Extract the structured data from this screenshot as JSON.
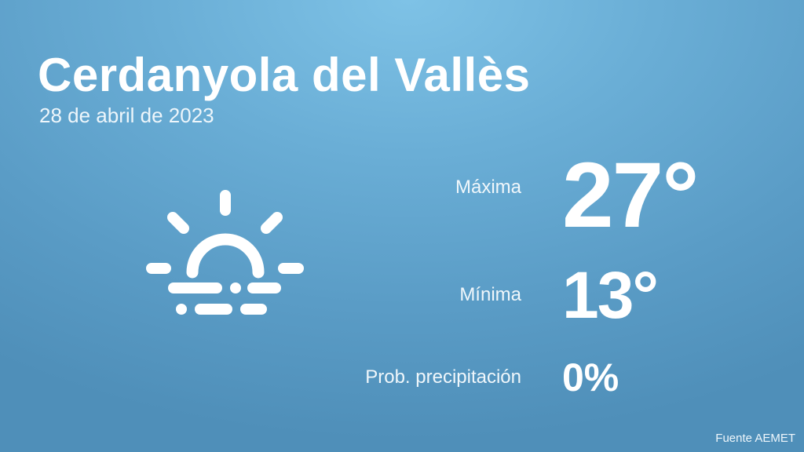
{
  "location": "Cerdanyola del Vallès",
  "date": "28 de abril de 2023",
  "forecast": {
    "icon": "sun-rising-fog-icon",
    "max_label": "Máxima",
    "max_value": "27°",
    "min_label": "Mínima",
    "min_value": "13°",
    "precip_label": "Prob. precipitación",
    "precip_value": "0%"
  },
  "source": "Fuente AEMET",
  "colors": {
    "background_top": "#7ec2e6",
    "background_bottom": "#4f8fb9",
    "text": "#ffffff"
  }
}
